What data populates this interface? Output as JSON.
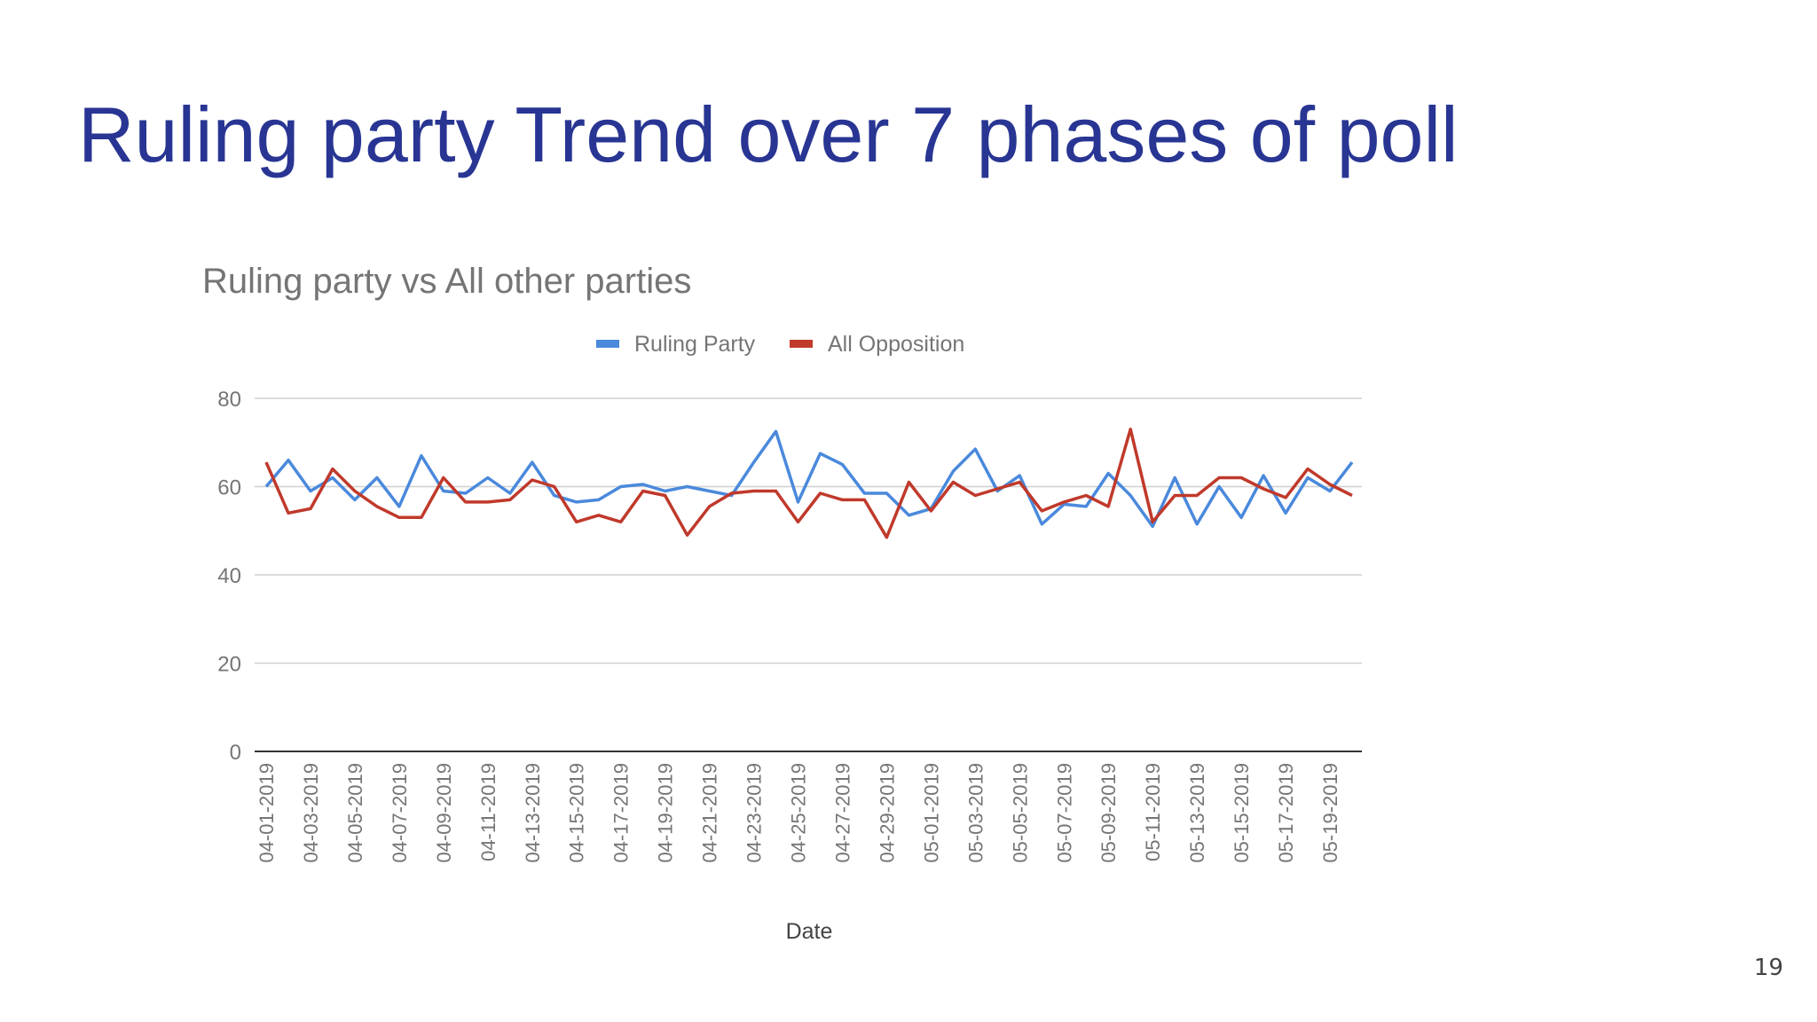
{
  "slide": {
    "title": "Ruling party Trend over 7 phases of poll",
    "page_number": "19"
  },
  "colors": {
    "title": "#283593",
    "ruling": "#4a89dc",
    "opposition": "#c0392b",
    "grid": "#d0d0d0",
    "axis_text": "#757575"
  },
  "chart_data": {
    "type": "line",
    "title": "Ruling party vs All other parties",
    "xlabel": "Date",
    "ylabel": "",
    "ylim": [
      0,
      80
    ],
    "yticks": [
      0,
      20,
      40,
      60,
      80
    ],
    "grid": true,
    "legend": "top-center",
    "x": [
      "04-01-2019",
      "04-02-2019",
      "04-03-2019",
      "04-04-2019",
      "04-05-2019",
      "04-06-2019",
      "04-07-2019",
      "04-08-2019",
      "04-09-2019",
      "04-10-2019",
      "04-11-2019",
      "04-12-2019",
      "04-13-2019",
      "04-14-2019",
      "04-15-2019",
      "04-16-2019",
      "04-17-2019",
      "04-18-2019",
      "04-19-2019",
      "04-20-2019",
      "04-21-2019",
      "04-22-2019",
      "04-23-2019",
      "04-24-2019",
      "04-25-2019",
      "04-26-2019",
      "04-27-2019",
      "04-28-2019",
      "04-29-2019",
      "04-30-2019",
      "05-01-2019",
      "05-02-2019",
      "05-03-2019",
      "05-04-2019",
      "05-05-2019",
      "05-06-2019",
      "05-07-2019",
      "05-08-2019",
      "05-09-2019",
      "05-10-2019",
      "05-11-2019",
      "05-12-2019",
      "05-13-2019",
      "05-14-2019",
      "05-15-2019",
      "05-16-2019",
      "05-17-2019",
      "05-18-2019",
      "05-19-2019",
      "05-20-2019"
    ],
    "xtick_labels": [
      "04-01-2019",
      "04-03-2019",
      "04-05-2019",
      "04-07-2019",
      "04-09-2019",
      "04-11-2019",
      "04-13-2019",
      "04-15-2019",
      "04-17-2019",
      "04-19-2019",
      "04-21-2019",
      "04-23-2019",
      "04-25-2019",
      "04-27-2019",
      "04-29-2019",
      "05-01-2019",
      "05-03-2019",
      "05-05-2019",
      "05-07-2019",
      "05-09-2019",
      "05-11-2019",
      "05-13-2019",
      "05-15-2019",
      "05-17-2019",
      "05-19-2019"
    ],
    "series": [
      {
        "name": "Ruling Party",
        "color": "#4a89dc",
        "values": [
          60,
          66,
          59,
          62,
          57,
          62,
          55.5,
          67,
          59,
          58.5,
          62,
          58.5,
          65.5,
          58,
          56.5,
          57,
          60,
          60.5,
          59,
          60,
          59,
          58,
          65.5,
          72.5,
          56.5,
          67.5,
          65,
          58.5,
          58.5,
          53.5,
          55,
          63.5,
          68.5,
          59,
          62.5,
          51.5,
          56,
          55.5,
          63,
          58,
          51,
          62,
          51.5,
          60,
          53,
          62.5,
          54,
          62,
          59,
          65.5
        ]
      },
      {
        "name": "All Opposition",
        "color": "#c0392b",
        "values": [
          65.5,
          54,
          55,
          64,
          59,
          55.5,
          53,
          53,
          62,
          56.5,
          56.5,
          57,
          61.5,
          60,
          52,
          53.5,
          52,
          59,
          58,
          49,
          55.5,
          58.5,
          59,
          59,
          52,
          58.5,
          57,
          57,
          48.5,
          61,
          54.5,
          61,
          58,
          59.5,
          61,
          54.5,
          56.5,
          58,
          55.5,
          73,
          52,
          58,
          58,
          62,
          62,
          59.5,
          57.5,
          64,
          60.5,
          58
        ]
      }
    ]
  }
}
